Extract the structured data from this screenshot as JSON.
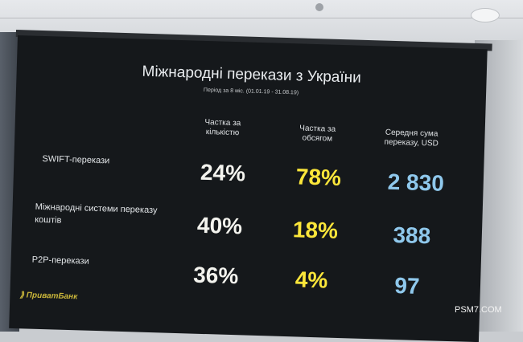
{
  "slide": {
    "title": "Міжнародні перекази з України",
    "subtitle": "Період за 8 міс. (01.01.19 - 31.08.19)",
    "columns": [
      "Частка за кількістю",
      "Частка за обсягом",
      "Середня сума переказу, USD"
    ],
    "rows": [
      {
        "label": "SWIFT-перекази",
        "count_share": "24%",
        "volume_share": "78%",
        "avg_amount": "2 830"
      },
      {
        "label": "Міжнародні системи переказу коштів",
        "count_share": "40%",
        "volume_share": "18%",
        "avg_amount": "388"
      },
      {
        "label": "P2P-перекази",
        "count_share": "36%",
        "volume_share": "4%",
        "avg_amount": "97"
      }
    ],
    "logo": "ПриватБанк"
  },
  "watermark": "PSM7.COM",
  "colors": {
    "value_white": "#f3f3ee",
    "value_yellow": "#fbe63a",
    "value_blue": "#8fc8ec",
    "screen": "#15181b"
  }
}
